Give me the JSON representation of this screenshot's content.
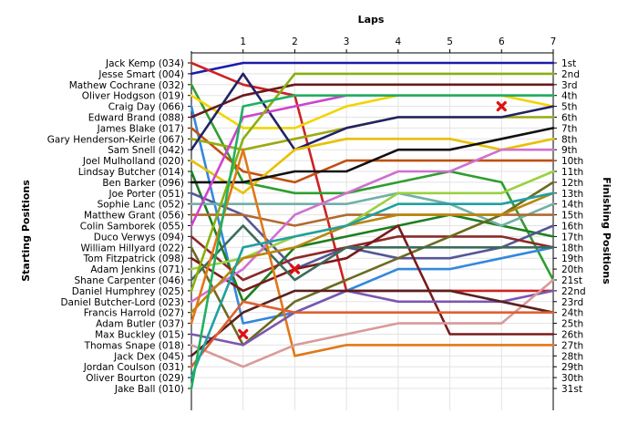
{
  "chart_data": {
    "type": "line",
    "title": "",
    "xlabel": "Laps",
    "ylabel_left": "Starting Positions",
    "ylabel_right": "Finishing Positions",
    "x_ticks": [
      "1",
      "2",
      "3",
      "4",
      "5",
      "6",
      "7"
    ],
    "positions": 31,
    "drivers": [
      "Jack Kemp (034)",
      "Jesse Smart (004)",
      "Mathew Cochrane (032)",
      "Oliver Hodgson (019)",
      "Craig Day (066)",
      "Edward Brand (088)",
      "James Blake (017)",
      "Gary Henderson-Keirle (067)",
      "Sam Snell (042)",
      "Joel Mulholland (020)",
      "Lindsay Butcher (014)",
      "Ben Barker (096)",
      "Joe Porter (051)",
      "Sophie Lanc (052)",
      "Matthew Grant (056)",
      "Colin Samborek (055)",
      "Duco Verwys (094)",
      "William Hillyard (022)",
      "Tom Fitzpatrick (098)",
      "Adam Jenkins (071)",
      "Shane Carpenter (046)",
      "Daniel Humphrey (025)",
      "Daniel Butcher-Lord (023)",
      "Francis Harrold (027)",
      "Adam Butler (037)",
      "Max Buckley (015)",
      "Thomas Snape (018)",
      "Jack Dex (045)",
      "Jordan Coulson (031)",
      "Oliver Bourton (029)",
      "Jake Ball (010)"
    ],
    "finish_labels": [
      "1st",
      "2nd",
      "3rd",
      "4th",
      "5th",
      "6th",
      "7th",
      "8th",
      "9th",
      "10th",
      "11th",
      "12th",
      "13th",
      "14th",
      "15th",
      "16th",
      "17th",
      "18th",
      "19th",
      "20th",
      "21st",
      "22nd",
      "23rd",
      "24th",
      "25th",
      "26th",
      "27th",
      "28th",
      "29th",
      "30th",
      "31st"
    ],
    "series": [
      {
        "color": "#1c1ca8",
        "positions": [
          2,
          1,
          1,
          1,
          1,
          1,
          1,
          1
        ]
      },
      {
        "color": "#cc2222",
        "positions": [
          1,
          3,
          4,
          22,
          22,
          22,
          22,
          22
        ]
      },
      {
        "color": "#2f9e2f",
        "positions": [
          3,
          12,
          13,
          13,
          12,
          11,
          12,
          21
        ]
      },
      {
        "color": "#f2d500",
        "positions": [
          4,
          7,
          7,
          5,
          4,
          4,
          4,
          5
        ]
      },
      {
        "color": "#3388dd",
        "positions": [
          5,
          25,
          24,
          22,
          20,
          20,
          19,
          18
        ]
      },
      {
        "color": "#6a1a1a",
        "positions": [
          6,
          4,
          3,
          3,
          3,
          3,
          3,
          3
        ]
      },
      {
        "color": "#c05010",
        "positions": [
          7,
          11,
          12,
          10,
          10,
          10,
          10,
          10
        ]
      },
      {
        "color": "#9aaa10",
        "positions": [
          8,
          9,
          8,
          7,
          6,
          6,
          6,
          6
        ]
      },
      {
        "color": "#222266",
        "positions": [
          9,
          2,
          9,
          7,
          6,
          6,
          6,
          5
        ]
      },
      {
        "color": "#e8c000",
        "positions": [
          10,
          13,
          9,
          8,
          8,
          8,
          9,
          8
        ]
      },
      {
        "color": "#1e7e1e",
        "positions": [
          11,
          23,
          18,
          17,
          16,
          15,
          16,
          17
        ]
      },
      {
        "color": "#101010",
        "positions": [
          12,
          12,
          11,
          11,
          9,
          9,
          8,
          7
        ]
      },
      {
        "color": "#555599",
        "positions": [
          13,
          15,
          20,
          18,
          19,
          19,
          18,
          16
        ]
      },
      {
        "color": "#70b0a8",
        "positions": [
          14,
          14,
          14,
          14,
          13,
          14,
          16,
          14
        ]
      },
      {
        "color": "#b06a30",
        "positions": [
          15,
          15,
          16,
          15,
          15,
          15,
          15,
          15
        ]
      },
      {
        "color": "#cc44cc",
        "positions": [
          16,
          6,
          5,
          4,
          4,
          4,
          4,
          4
        ]
      },
      {
        "color": "#8c2a2a",
        "positions": [
          17,
          21,
          19,
          18,
          17,
          17,
          17,
          18
        ]
      },
      {
        "color": "#6b6b20",
        "positions": [
          18,
          27,
          23,
          21,
          19,
          17,
          15,
          12
        ]
      },
      {
        "color": "#7a1a1a",
        "positions": [
          19,
          22,
          20,
          19,
          16,
          26,
          26,
          26
        ]
      },
      {
        "color": "#9ad040",
        "positions": [
          20,
          19,
          17,
          16,
          13,
          13,
          13,
          11
        ]
      },
      {
        "color": "#3d6b5a",
        "positions": [
          21,
          16,
          21,
          18,
          18,
          18,
          18,
          18
        ]
      },
      {
        "color": "#88b010",
        "positions": [
          22,
          8,
          2,
          2,
          2,
          2,
          2,
          2
        ]
      },
      {
        "color": "#d070d0",
        "positions": [
          23,
          20,
          15,
          13,
          11,
          11,
          9,
          9
        ]
      },
      {
        "color": "#b8860b",
        "positions": [
          24,
          19,
          18,
          16,
          15,
          15,
          15,
          13
        ]
      },
      {
        "color": "#e07818",
        "positions": [
          25,
          9,
          28,
          27,
          27,
          27,
          27,
          27
        ]
      },
      {
        "color": "#7c56b0",
        "positions": [
          26,
          27,
          24,
          22,
          23,
          23,
          23,
          22
        ]
      },
      {
        "color": "#d89a9a",
        "positions": [
          27,
          29,
          27,
          26,
          25,
          25,
          25,
          21
        ]
      },
      {
        "color": "#5a2020",
        "positions": [
          28,
          24,
          22,
          22,
          22,
          22,
          23,
          24
        ]
      },
      {
        "color": "#e06030",
        "positions": [
          29,
          23,
          24,
          24,
          24,
          24,
          24,
          24
        ]
      },
      {
        "color": "#20a0a0",
        "positions": [
          30,
          18,
          17,
          16,
          14,
          14,
          14,
          13
        ]
      },
      {
        "color": "#20b060",
        "positions": [
          31,
          5,
          4,
          4,
          4,
          4,
          4,
          4
        ]
      }
    ],
    "retired_markers": [
      {
        "lap": 1,
        "position": 26
      },
      {
        "lap": 2,
        "position": 20
      },
      {
        "lap": 6,
        "position": 5
      }
    ],
    "grid": true
  }
}
